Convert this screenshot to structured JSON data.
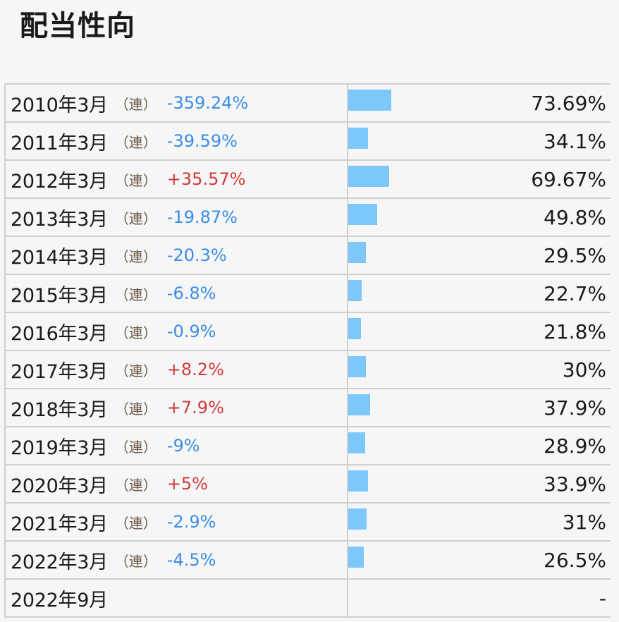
{
  "title": "配当性向",
  "colors": {
    "negative": "#3a8ee6",
    "positive": "#d03a3a",
    "bar": "#7cc8fb"
  },
  "rows": [
    {
      "period": "2010年3月",
      "consol": "（連）",
      "change": "-359.24%",
      "sign": "neg",
      "ratio": "73.69%",
      "ratio_value": 73.69
    },
    {
      "period": "2011年3月",
      "consol": "（連）",
      "change": "-39.59%",
      "sign": "neg",
      "ratio": "34.1%",
      "ratio_value": 34.1
    },
    {
      "period": "2012年3月",
      "consol": "（連）",
      "change": "+35.57%",
      "sign": "pos",
      "ratio": "69.67%",
      "ratio_value": 69.67
    },
    {
      "period": "2013年3月",
      "consol": "（連）",
      "change": "-19.87%",
      "sign": "neg",
      "ratio": "49.8%",
      "ratio_value": 49.8
    },
    {
      "period": "2014年3月",
      "consol": "（連）",
      "change": "-20.3%",
      "sign": "neg",
      "ratio": "29.5%",
      "ratio_value": 29.5
    },
    {
      "period": "2015年3月",
      "consol": "（連）",
      "change": "-6.8%",
      "sign": "neg",
      "ratio": "22.7%",
      "ratio_value": 22.7
    },
    {
      "period": "2016年3月",
      "consol": "（連）",
      "change": "-0.9%",
      "sign": "neg",
      "ratio": "21.8%",
      "ratio_value": 21.8
    },
    {
      "period": "2017年3月",
      "consol": "（連）",
      "change": "+8.2%",
      "sign": "pos",
      "ratio": "30%",
      "ratio_value": 30
    },
    {
      "period": "2018年3月",
      "consol": "（連）",
      "change": "+7.9%",
      "sign": "pos",
      "ratio": "37.9%",
      "ratio_value": 37.9
    },
    {
      "period": "2019年3月",
      "consol": "（連）",
      "change": "-9%",
      "sign": "neg",
      "ratio": "28.9%",
      "ratio_value": 28.9
    },
    {
      "period": "2020年3月",
      "consol": "（連）",
      "change": "+5%",
      "sign": "pos",
      "ratio": "33.9%",
      "ratio_value": 33.9
    },
    {
      "period": "2021年3月",
      "consol": "（連）",
      "change": "-2.9%",
      "sign": "neg",
      "ratio": "31%",
      "ratio_value": 31
    },
    {
      "period": "2022年3月",
      "consol": "（連）",
      "change": "-4.5%",
      "sign": "neg",
      "ratio": "26.5%",
      "ratio_value": 26.5
    },
    {
      "period": "2022年9月",
      "consol": "",
      "change": "",
      "sign": "",
      "ratio": "-",
      "ratio_value": null
    }
  ]
}
